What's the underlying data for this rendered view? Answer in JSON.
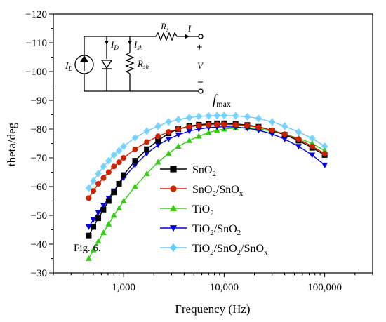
{
  "chart_data": {
    "type": "scatter",
    "title": "",
    "xlabel": "Frequency (Hz)",
    "ylabel": "theta/deg",
    "x_scale": "log",
    "xlim": [
      200,
      300000
    ],
    "ylim": [
      -30,
      -120
    ],
    "x_ticks": [
      {
        "value": 1000,
        "label": "1,000"
      },
      {
        "value": 10000,
        "label": "10,000"
      },
      {
        "value": 100000,
        "label": "100,000"
      }
    ],
    "y_ticks": [
      {
        "value": -30,
        "label": "−30"
      },
      {
        "value": -40,
        "label": "−40"
      },
      {
        "value": -50,
        "label": "−50"
      },
      {
        "value": -60,
        "label": "−60"
      },
      {
        "value": -70,
        "label": "−70"
      },
      {
        "value": -80,
        "label": "−80"
      },
      {
        "value": -90,
        "label": "−90"
      },
      {
        "value": -100,
        "label": "−100"
      },
      {
        "value": -110,
        "label": "−110"
      },
      {
        "value": -120,
        "label": "−120"
      }
    ],
    "grid": false,
    "legend_position": "lower-center",
    "annotations": [
      {
        "key": "fig",
        "text": "Fig. 6."
      },
      {
        "key": "fmax",
        "text": "f",
        "subscript": "max"
      }
    ],
    "series": [
      {
        "name": "SnO2",
        "name_main": "SnO",
        "name_sub": "2",
        "color": "#000000",
        "marker": "square",
        "x": [
          450,
          500,
          560,
          630,
          710,
          800,
          900,
          1000,
          1300,
          1700,
          2200,
          2800,
          3500,
          4500,
          5600,
          7000,
          8500,
          10000,
          13000,
          17000,
          22000,
          30000,
          40000,
          55000,
          75000,
          100000
        ],
        "y": [
          -43,
          -46,
          -49,
          -52,
          -55,
          -58,
          -61,
          -64,
          -69,
          -73,
          -76,
          -78.5,
          -80,
          -81,
          -81.5,
          -81.8,
          -82,
          -82,
          -81.8,
          -81.4,
          -80.8,
          -79.5,
          -78,
          -76,
          -73.5,
          -71
        ]
      },
      {
        "name": "SnO2/SnOx",
        "name_main": "SnO",
        "name_sub": "2",
        "name_main2": "/SnO",
        "name_sub2": "x",
        "color": "#cc2200",
        "marker": "circle",
        "x": [
          450,
          500,
          560,
          630,
          710,
          800,
          900,
          1000,
          1300,
          1700,
          2200,
          2800,
          3500,
          4500,
          5600,
          7000,
          8500,
          10000,
          13000,
          17000,
          22000,
          30000,
          40000,
          55000,
          75000,
          100000
        ],
        "y": [
          -56,
          -58.5,
          -61,
          -63,
          -65,
          -67,
          -68.5,
          -70,
          -73,
          -75.5,
          -77.5,
          -79,
          -80,
          -80.8,
          -81.2,
          -81.5,
          -81.6,
          -81.6,
          -81.5,
          -81.2,
          -80.6,
          -79.6,
          -78.2,
          -76.5,
          -74,
          -71.5
        ]
      },
      {
        "name": "TiO2",
        "name_main": "TiO",
        "name_sub": "2",
        "color": "#33cc11",
        "marker": "triangle-up",
        "x": [
          450,
          500,
          560,
          630,
          710,
          800,
          900,
          1000,
          1300,
          1700,
          2200,
          2800,
          3500,
          4500,
          5600,
          7000,
          8500,
          10000,
          13000,
          17000,
          22000,
          30000,
          40000,
          55000,
          75000,
          100000
        ],
        "y": [
          -35,
          -38,
          -41,
          -44,
          -47,
          -50,
          -52.5,
          -55,
          -60,
          -64.5,
          -68.5,
          -71.5,
          -74,
          -76,
          -77.5,
          -78.8,
          -79.5,
          -80,
          -80.4,
          -80.4,
          -80.1,
          -79.2,
          -78.2,
          -76.8,
          -75,
          -72.5
        ]
      },
      {
        "name": "TiO2/SnO2",
        "name_main": "TiO",
        "name_sub": "2",
        "name_main2": "/SnO",
        "name_sub2": "2",
        "color": "#0000dd",
        "marker": "triangle-down",
        "x": [
          450,
          500,
          560,
          630,
          710,
          800,
          900,
          1000,
          1300,
          1700,
          2200,
          2800,
          3500,
          4500,
          5600,
          7000,
          8500,
          10000,
          13000,
          17000,
          22000,
          30000,
          40000,
          55000,
          75000,
          100000
        ],
        "y": [
          -46,
          -48.5,
          -51,
          -53.5,
          -56,
          -58.5,
          -61,
          -63,
          -67.5,
          -71.5,
          -74.5,
          -76.5,
          -78,
          -79.3,
          -80,
          -80.5,
          -80.7,
          -80.8,
          -80.7,
          -80.3,
          -79.6,
          -78.3,
          -76.5,
          -74,
          -71,
          -67.5
        ]
      },
      {
        "name": "TiO2/SnO2/SnOx",
        "name_main": "TiO",
        "name_sub": "2",
        "name_main2": "/SnO",
        "name_sub2": "2",
        "name_main3": "/SnO",
        "name_sub3": "x",
        "color": "#66ccff",
        "marker": "diamond",
        "x": [
          450,
          500,
          560,
          630,
          710,
          800,
          900,
          1000,
          1300,
          1700,
          2200,
          2800,
          3500,
          4500,
          5600,
          7000,
          8500,
          10000,
          13000,
          17000,
          22000,
          30000,
          40000,
          55000,
          75000,
          100000
        ],
        "y": [
          -59.5,
          -62,
          -64.5,
          -67,
          -69,
          -71,
          -72.5,
          -74,
          -77,
          -79.3,
          -81,
          -82.5,
          -83.3,
          -84,
          -84.4,
          -84.6,
          -84.7,
          -84.7,
          -84.6,
          -84.3,
          -83.7,
          -82.5,
          -81,
          -79,
          -76.8,
          -74
        ]
      }
    ]
  },
  "circuit": {
    "labels": {
      "IL_main": "I",
      "IL_sub": "L",
      "ID_main": "I",
      "ID_sub": "D",
      "Ish_main": "I",
      "Ish_sub": "sh",
      "Rsh_main": "R",
      "Rsh_sub": "sh",
      "Rs_main": "R",
      "Rs_sub": "s",
      "I": "I",
      "V": "V",
      "plus": "+",
      "minus": "−"
    }
  }
}
